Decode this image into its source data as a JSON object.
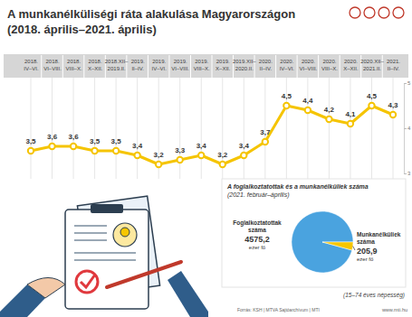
{
  "chart_data": [
    {
      "type": "line",
      "title": "A munkanélküliségi ráta alakulása Magyarországon",
      "subtitle": "(2018. április–2021. április)",
      "categories": [
        "2018. IV–VI.",
        "2018. VI–VIII.",
        "2018. VIII–X.",
        "2018. X–XII.",
        "2018.XII–2019.II.",
        "2019. II–IV.",
        "2019. IV–VI.",
        "2019. VI–VIII.",
        "2019. VIII–X.",
        "2019. X–XII.",
        "2019.XII–2020.II.",
        "2020. II–IV.",
        "2020. IV–VI.",
        "2020. VI–VIII.",
        "2020. VIII–X.",
        "2020. X–XII.",
        "2020.XII–2021.II.",
        "2021. II–IV."
      ],
      "values": [
        3.5,
        3.6,
        3.6,
        3.5,
        3.5,
        3.4,
        3.2,
        3.3,
        3.4,
        3.2,
        3.4,
        3.7,
        4.5,
        4.4,
        4.2,
        4.1,
        4.5,
        4.3
      ],
      "value_labels": [
        "3,5",
        "3,6",
        "3,6",
        "3,5",
        "3,5",
        "3,4",
        "3,2",
        "3,3",
        "3,4",
        "3,2",
        "3,4",
        "3,7",
        "4,5",
        "4,4",
        "4,2",
        "4,1",
        "4,5",
        "4,3"
      ],
      "color": "#f5c400",
      "ylim": [
        3,
        5
      ],
      "yticks": [
        3,
        4,
        5
      ],
      "grid": true,
      "data_labels": true,
      "marker": "circle"
    },
    {
      "type": "pie",
      "title": "A foglalkoztatottak és a munkanélküliek száma",
      "subtitle": "(2021. február–április)",
      "categories": [
        "Foglalkoztatottak száma",
        "Munkanélküliek száma"
      ],
      "values": [
        4575.2,
        205.9
      ],
      "value_labels": [
        "4575,2",
        "205,9"
      ],
      "unit": "ezer fő",
      "colors": [
        "#4aa3df",
        "#f7c600"
      ],
      "data_labels": true
    }
  ],
  "footer": {
    "note": "(15–74 éves népesség)",
    "source": "Forrás: KSH | MTVA Sajtóarchívum | MTI",
    "website": "www.mti.hu"
  }
}
